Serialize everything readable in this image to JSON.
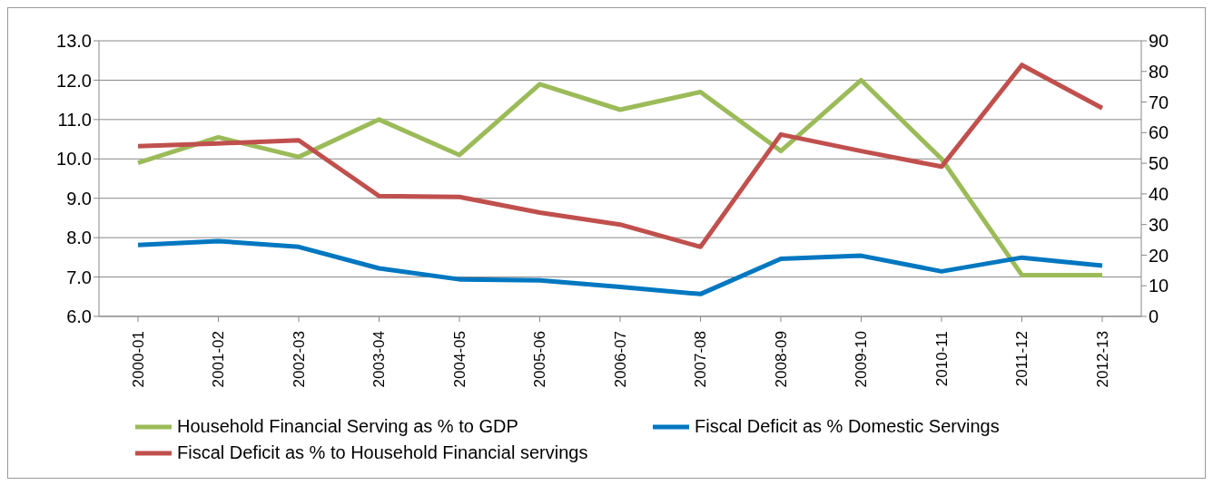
{
  "chart_data": {
    "type": "line",
    "categories": [
      "2000-01",
      "2001-02",
      "2002-03",
      "2003-04",
      "2004-05",
      "2005-06",
      "2006-07",
      "2007-08",
      "2008-09",
      "2009-10",
      "2010-11",
      "2011-12",
      "2012-13"
    ],
    "series": [
      {
        "name": "Household Financial Serving as % to GDP",
        "color": "#9bbb59",
        "values": [
          9.9,
          10.55,
          10.05,
          11.0,
          10.1,
          11.9,
          11.25,
          11.7,
          10.2,
          12.0,
          10.0,
          7.05,
          7.05
        ]
      },
      {
        "name": "Fiscal Deficit as % Domestic Servings",
        "color": "#0077c0",
        "axis": "y2",
        "values": [
          23.3,
          24.6,
          22.7,
          15.7,
          12.1,
          11.8,
          9.6,
          7.3,
          18.8,
          19.8,
          14.7,
          19.2,
          16.6
        ]
      },
      {
        "name": "Fiscal Deficit as % to Household Financial servings",
        "color": "#c0504d",
        "axis": "y2",
        "values": [
          55.6,
          56.5,
          57.5,
          39.3,
          39,
          33.9,
          30,
          22.7,
          59.4,
          54,
          48.9,
          82.1,
          68
        ]
      }
    ],
    "ylim": [
      6,
      13
    ],
    "yticks": [
      {
        "value": 6,
        "label": "6.0"
      },
      {
        "value": 7,
        "label": "7.0"
      },
      {
        "value": 8,
        "label": "8.0"
      },
      {
        "value": 9,
        "label": "9.0"
      },
      {
        "value": 10,
        "label": "10.0"
      },
      {
        "value": 11,
        "label": "11.0"
      },
      {
        "value": 12,
        "label": "12.0"
      },
      {
        "value": 13,
        "label": "13.0"
      }
    ],
    "y2lim": [
      0,
      90
    ],
    "y2ticks": [
      0,
      10,
      20,
      30,
      40,
      50,
      60,
      70,
      80,
      90
    ],
    "grid": "y",
    "legend": "bottom",
    "marker": "none",
    "line_style": "solid"
  }
}
